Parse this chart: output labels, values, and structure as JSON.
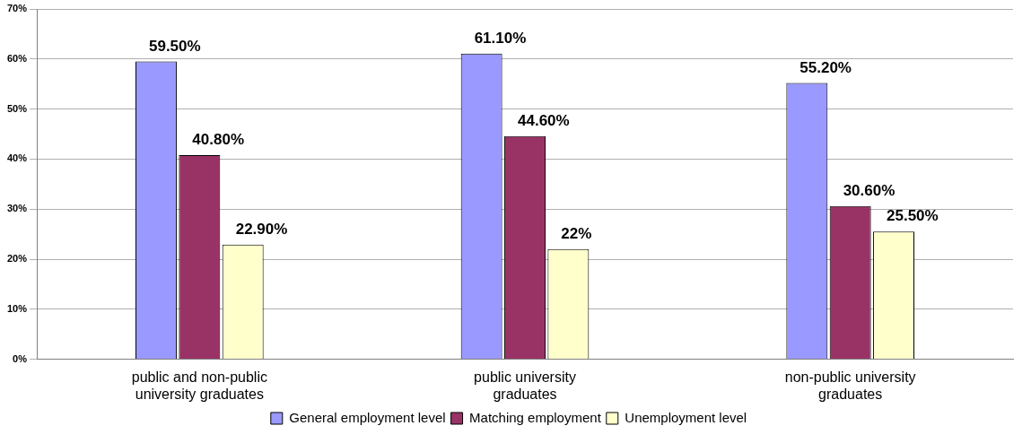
{
  "chart_data": {
    "type": "bar",
    "categories": [
      "public and non-public university graduates",
      "public university graduates",
      "non-public university graduates"
    ],
    "series": [
      {
        "name": "General employment level",
        "color": "#9999ff",
        "values": [
          59.5,
          61.1,
          55.2
        ],
        "value_labels": [
          "59.50%",
          "61.10%",
          "55.20%"
        ]
      },
      {
        "name": "Matching employment",
        "color": "#993366",
        "values": [
          40.8,
          44.6,
          30.6
        ],
        "value_labels": [
          "40.80%",
          "44.60%",
          "30.60%"
        ]
      },
      {
        "name": "Unemployment level",
        "color": "#ffffcc",
        "values": [
          22.9,
          22,
          25.5
        ],
        "value_labels": [
          "22.90%",
          "22%",
          "25.50%"
        ]
      }
    ],
    "ylim": [
      0,
      70
    ],
    "yticks": [
      {
        "value": 0,
        "label": "0%"
      },
      {
        "value": 10,
        "label": "10%"
      },
      {
        "value": 20,
        "label": "20%"
      },
      {
        "value": 30,
        "label": "30%"
      },
      {
        "value": 40,
        "label": "40%"
      },
      {
        "value": 50,
        "label": "50%"
      },
      {
        "value": 60,
        "label": "60%"
      },
      {
        "value": 70,
        "label": "70%"
      }
    ],
    "grid": "y",
    "legend": "bottom"
  }
}
